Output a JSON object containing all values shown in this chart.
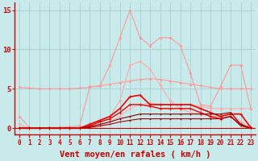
{
  "xlabel": "Vent moyen/en rafales ( km/h )",
  "bg_color": "#c8eaea",
  "grid_color": "#a8d0d0",
  "x_ticks": [
    0,
    1,
    2,
    3,
    4,
    5,
    6,
    7,
    8,
    9,
    10,
    11,
    12,
    13,
    14,
    15,
    16,
    17,
    18,
    19,
    20,
    21,
    22,
    23
  ],
  "ylim": [
    -0.8,
    16.0
  ],
  "yticks": [
    0,
    5,
    10,
    15
  ],
  "lines": [
    {
      "color": "#ff9999",
      "lw": 0.8,
      "marker": "D",
      "ms": 1.5,
      "y": [
        5.2,
        5.1,
        5.0,
        5.0,
        5.0,
        5.0,
        5.1,
        5.2,
        5.4,
        5.6,
        5.8,
        6.0,
        6.2,
        6.3,
        6.2,
        6.0,
        5.8,
        5.6,
        5.4,
        5.2,
        5.0,
        5.0,
        5.0,
        5.0
      ]
    },
    {
      "color": "#ff9999",
      "lw": 0.8,
      "marker": "D",
      "ms": 1.5,
      "y": [
        1.5,
        0.1,
        0.0,
        0.1,
        0.1,
        0.2,
        0.3,
        5.3,
        5.3,
        8.0,
        11.5,
        15.0,
        11.5,
        10.5,
        11.5,
        11.5,
        10.5,
        7.0,
        3.0,
        2.8,
        5.3,
        8.0,
        8.0,
        2.5
      ]
    },
    {
      "color": "#ffaaaa",
      "lw": 0.8,
      "marker": "D",
      "ms": 1.5,
      "y": [
        0.5,
        0.0,
        0.0,
        0.0,
        0.1,
        0.1,
        0.1,
        0.2,
        1.0,
        1.5,
        3.5,
        8.0,
        8.5,
        7.5,
        5.5,
        3.5,
        2.5,
        2.0,
        1.8,
        1.5,
        1.5,
        2.0,
        0.8,
        0.1
      ]
    },
    {
      "color": "#ffaaaa",
      "lw": 0.8,
      "marker": "D",
      "ms": 1.5,
      "y": [
        0.0,
        0.0,
        0.0,
        0.0,
        0.0,
        0.0,
        0.0,
        0.0,
        0.3,
        0.8,
        1.5,
        2.5,
        3.0,
        3.2,
        3.0,
        3.0,
        3.0,
        3.0,
        2.8,
        2.5,
        2.5,
        2.5,
        2.5,
        2.5
      ]
    },
    {
      "color": "#ee0000",
      "lw": 1.2,
      "marker": "+",
      "ms": 3.0,
      "y": [
        0.0,
        0.0,
        0.0,
        0.0,
        0.0,
        0.0,
        0.0,
        0.5,
        1.0,
        1.5,
        2.5,
        4.0,
        4.2,
        3.0,
        3.0,
        3.0,
        3.0,
        3.0,
        2.5,
        2.0,
        1.5,
        1.8,
        1.8,
        0.1
      ]
    },
    {
      "color": "#ee0000",
      "lw": 1.0,
      "marker": "+",
      "ms": 2.5,
      "y": [
        0.0,
        0.0,
        0.0,
        0.0,
        0.0,
        0.0,
        0.0,
        0.3,
        0.8,
        1.2,
        2.0,
        3.0,
        3.0,
        2.8,
        2.5,
        2.5,
        2.5,
        2.5,
        2.0,
        1.5,
        1.2,
        1.5,
        0.5,
        0.0
      ]
    },
    {
      "color": "#880000",
      "lw": 0.8,
      "marker": "+",
      "ms": 2.0,
      "y": [
        0.0,
        0.0,
        0.0,
        0.0,
        0.0,
        0.0,
        0.0,
        0.2,
        0.5,
        0.8,
        1.2,
        1.5,
        1.8,
        1.8,
        1.8,
        1.8,
        1.8,
        1.8,
        1.8,
        1.8,
        1.8,
        2.0,
        0.5,
        0.0
      ]
    },
    {
      "color": "#aa0000",
      "lw": 0.8,
      "marker": "+",
      "ms": 2.0,
      "y": [
        0.0,
        0.0,
        0.0,
        0.0,
        0.0,
        0.0,
        0.0,
        0.1,
        0.3,
        0.5,
        0.8,
        1.0,
        1.2,
        1.2,
        1.2,
        1.2,
        1.2,
        1.2,
        1.2,
        1.2,
        1.2,
        1.5,
        0.3,
        0.0
      ]
    }
  ],
  "tick_color": "#cc0000",
  "spine_color": "#cc0000",
  "tick_fontsize": 5.5,
  "ylabel_fontsize": 6.5,
  "xlabel_fontsize": 7.5
}
